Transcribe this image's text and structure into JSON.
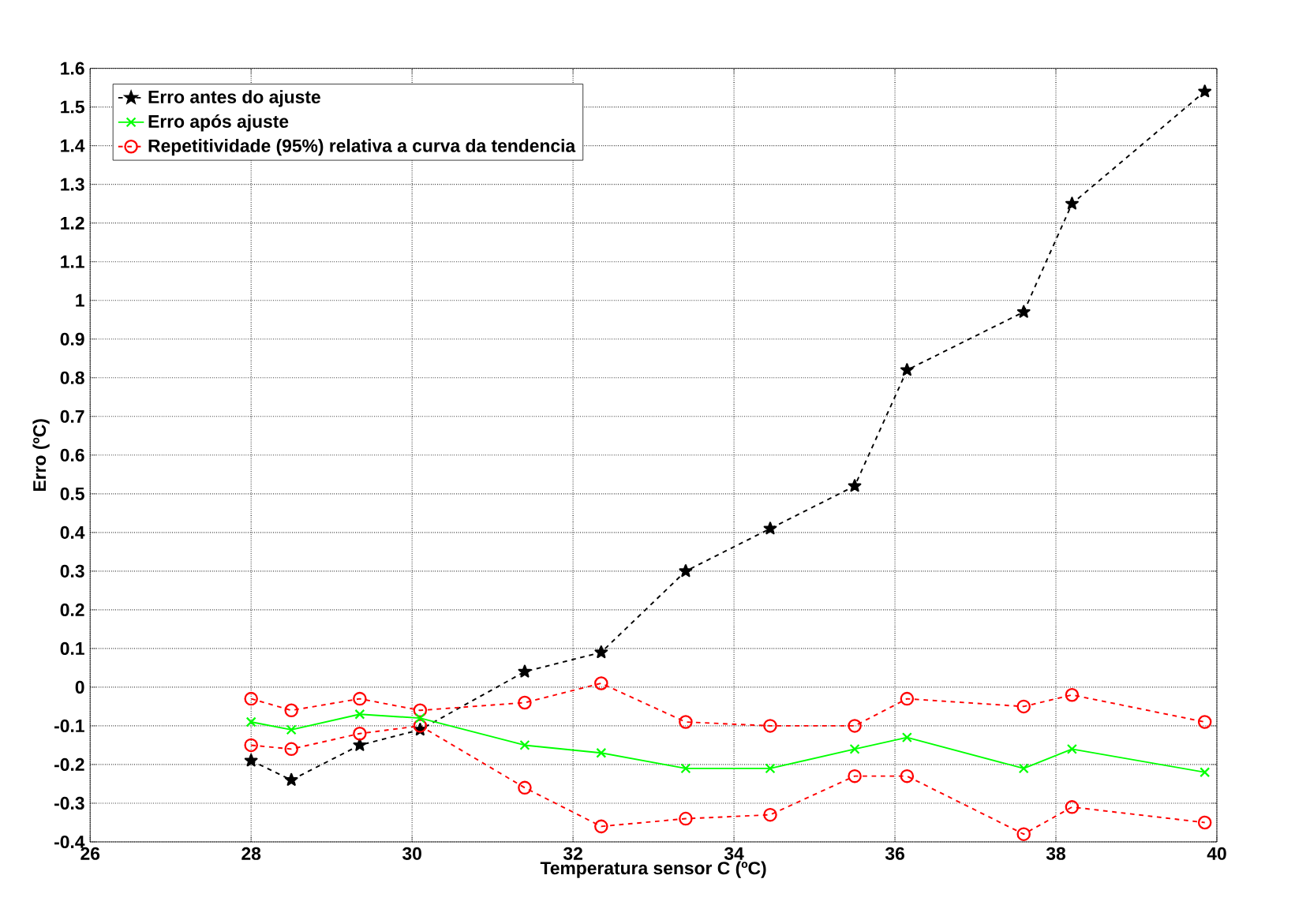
{
  "chart_data": {
    "type": "line",
    "xlabel": "Temperatura sensor C (ºC)",
    "ylabel": "Erro (ºC)",
    "x": [
      28,
      28.5,
      29.35,
      30.1,
      31.4,
      32.35,
      33.4,
      34.45,
      35.5,
      36.15,
      37.6,
      38.2,
      39.85
    ],
    "series": [
      {
        "name": "Erro antes do ajuste",
        "color": "#000000",
        "marker": "star",
        "line_style": "dashed",
        "values": [
          -0.19,
          -0.24,
          -0.15,
          -0.11,
          0.04,
          0.09,
          0.3,
          0.41,
          0.52,
          0.82,
          0.97,
          1.25,
          1.54
        ]
      },
      {
        "name": "Erro após ajuste",
        "color": "#00ff00",
        "marker": "cross",
        "line_style": "solid",
        "values": [
          -0.09,
          -0.11,
          -0.07,
          -0.08,
          -0.15,
          -0.17,
          -0.21,
          -0.21,
          -0.16,
          -0.13,
          -0.21,
          -0.16,
          -0.22
        ]
      },
      {
        "name": "Repetitividade (95%) relativa a curva da tendencia",
        "color": "#ff0000",
        "marker": "circle",
        "line_style": "dashed",
        "values": [
          -0.03,
          -0.06,
          -0.03,
          -0.06,
          -0.04,
          0.01,
          -0.09,
          -0.1,
          -0.1,
          -0.03,
          -0.05,
          -0.02,
          -0.09
        ]
      },
      {
        "color": "#ff0000",
        "marker": "circle",
        "line_style": "dashed",
        "values": [
          -0.15,
          -0.16,
          -0.12,
          -0.1,
          -0.26,
          -0.36,
          -0.34,
          -0.33,
          -0.23,
          -0.23,
          -0.38,
          -0.31,
          -0.35
        ]
      }
    ],
    "xlim": [
      26,
      40
    ],
    "xticks": [
      26,
      28,
      30,
      32,
      34,
      36,
      38,
      40
    ],
    "ylim": [
      -0.4,
      1.6
    ],
    "yticks": [
      -0.4,
      -0.3,
      -0.2,
      -0.1,
      0,
      0.1,
      0.2,
      0.3,
      0.4,
      0.5,
      0.6,
      0.7,
      0.8,
      0.9,
      1,
      1.1,
      1.2,
      1.3,
      1.4,
      1.5,
      1.6
    ],
    "grid": true,
    "legend": "top left"
  }
}
